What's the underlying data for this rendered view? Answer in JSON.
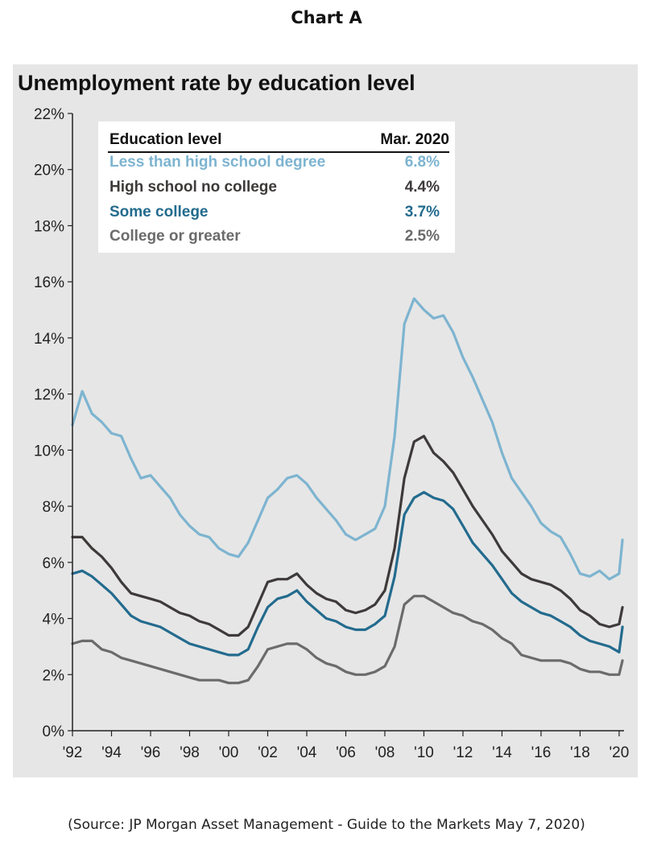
{
  "page_heading": "Chart A",
  "source_note": "(Source: JP Morgan Asset Management - Guide to the Markets May 7, 2020)",
  "chart_data": {
    "type": "line",
    "title": "Unemployment rate by education level",
    "xlabel": "",
    "ylabel": "",
    "ylim": [
      0,
      22
    ],
    "xlim": [
      1992,
      2020.25
    ],
    "y_ticks": [
      "0%",
      "2%",
      "4%",
      "6%",
      "8%",
      "10%",
      "12%",
      "14%",
      "16%",
      "18%",
      "20%",
      "22%"
    ],
    "x_ticks": [
      "'92",
      "'94",
      "'96",
      "'98",
      "'00",
      "'02",
      "'04",
      "'06",
      "'08",
      "'10",
      "'12",
      "'14",
      "'16",
      "'18",
      "'20"
    ],
    "grid": false,
    "legend": {
      "placement": "top-left",
      "header_label": "Education level",
      "header_value": "Mar. 2020"
    },
    "series": [
      {
        "name": "Less than high school degree",
        "latest": "6.8%",
        "color": "#7db4d0",
        "x": [
          1992,
          1992.5,
          1993,
          1993.5,
          1994,
          1994.5,
          1995,
          1995.5,
          1996,
          1996.5,
          1997,
          1997.5,
          1998,
          1998.5,
          1999,
          1999.5,
          2000,
          2000.5,
          2001,
          2001.5,
          2002,
          2002.5,
          2003,
          2003.5,
          2004,
          2004.5,
          2005,
          2005.5,
          2006,
          2006.5,
          2007,
          2007.5,
          2008,
          2008.5,
          2009,
          2009.5,
          2010,
          2010.5,
          2011,
          2011.5,
          2012,
          2012.5,
          2013,
          2013.5,
          2014,
          2014.5,
          2015,
          2015.5,
          2016,
          2016.5,
          2017,
          2017.5,
          2018,
          2018.5,
          2019,
          2019.5,
          2020,
          2020.17
        ],
        "values": [
          10.9,
          12.1,
          11.3,
          11.0,
          10.6,
          10.5,
          9.7,
          9.0,
          9.1,
          8.7,
          8.3,
          7.7,
          7.3,
          7.0,
          6.9,
          6.5,
          6.3,
          6.2,
          6.7,
          7.5,
          8.3,
          8.6,
          9.0,
          9.1,
          8.8,
          8.3,
          7.9,
          7.5,
          7.0,
          6.8,
          7.0,
          7.2,
          8.0,
          10.5,
          14.5,
          15.4,
          15.0,
          14.7,
          14.8,
          14.2,
          13.3,
          12.6,
          11.8,
          11.0,
          9.9,
          9.0,
          8.5,
          8.0,
          7.4,
          7.1,
          6.9,
          6.3,
          5.6,
          5.5,
          5.7,
          5.4,
          5.6,
          6.8
        ]
      },
      {
        "name": "High school no college",
        "latest": "4.4%",
        "color": "#3e3a3a",
        "x": [
          1992,
          1992.5,
          1993,
          1993.5,
          1994,
          1994.5,
          1995,
          1995.5,
          1996,
          1996.5,
          1997,
          1997.5,
          1998,
          1998.5,
          1999,
          1999.5,
          2000,
          2000.5,
          2001,
          2001.5,
          2002,
          2002.5,
          2003,
          2003.5,
          2004,
          2004.5,
          2005,
          2005.5,
          2006,
          2006.5,
          2007,
          2007.5,
          2008,
          2008.5,
          2009,
          2009.5,
          2010,
          2010.5,
          2011,
          2011.5,
          2012,
          2012.5,
          2013,
          2013.5,
          2014,
          2014.5,
          2015,
          2015.5,
          2016,
          2016.5,
          2017,
          2017.5,
          2018,
          2018.5,
          2019,
          2019.5,
          2020,
          2020.17
        ],
        "values": [
          6.9,
          6.9,
          6.5,
          6.2,
          5.8,
          5.3,
          4.9,
          4.8,
          4.7,
          4.6,
          4.4,
          4.2,
          4.1,
          3.9,
          3.8,
          3.6,
          3.4,
          3.4,
          3.7,
          4.5,
          5.3,
          5.4,
          5.4,
          5.6,
          5.2,
          4.9,
          4.7,
          4.6,
          4.3,
          4.2,
          4.3,
          4.5,
          5.0,
          6.5,
          9.0,
          10.3,
          10.5,
          9.9,
          9.6,
          9.2,
          8.6,
          8.0,
          7.5,
          7.0,
          6.4,
          6.0,
          5.6,
          5.4,
          5.3,
          5.2,
          5.0,
          4.7,
          4.3,
          4.1,
          3.8,
          3.7,
          3.8,
          4.4
        ]
      },
      {
        "name": "Some college",
        "latest": "3.7%",
        "color": "#236b8e",
        "x": [
          1992,
          1992.5,
          1993,
          1993.5,
          1994,
          1994.5,
          1995,
          1995.5,
          1996,
          1996.5,
          1997,
          1997.5,
          1998,
          1998.5,
          1999,
          1999.5,
          2000,
          2000.5,
          2001,
          2001.5,
          2002,
          2002.5,
          2003,
          2003.5,
          2004,
          2004.5,
          2005,
          2005.5,
          2006,
          2006.5,
          2007,
          2007.5,
          2008,
          2008.5,
          2009,
          2009.5,
          2010,
          2010.5,
          2011,
          2011.5,
          2012,
          2012.5,
          2013,
          2013.5,
          2014,
          2014.5,
          2015,
          2015.5,
          2016,
          2016.5,
          2017,
          2017.5,
          2018,
          2018.5,
          2019,
          2019.5,
          2020,
          2020.17
        ],
        "values": [
          5.6,
          5.7,
          5.5,
          5.2,
          4.9,
          4.5,
          4.1,
          3.9,
          3.8,
          3.7,
          3.5,
          3.3,
          3.1,
          3.0,
          2.9,
          2.8,
          2.7,
          2.7,
          2.9,
          3.7,
          4.4,
          4.7,
          4.8,
          5.0,
          4.6,
          4.3,
          4.0,
          3.9,
          3.7,
          3.6,
          3.6,
          3.8,
          4.1,
          5.5,
          7.7,
          8.3,
          8.5,
          8.3,
          8.2,
          7.9,
          7.3,
          6.7,
          6.3,
          5.9,
          5.4,
          4.9,
          4.6,
          4.4,
          4.2,
          4.1,
          3.9,
          3.7,
          3.4,
          3.2,
          3.1,
          3.0,
          2.8,
          3.7
        ]
      },
      {
        "name": "College or greater",
        "latest": "2.5%",
        "color": "#6b6b6b",
        "x": [
          1992,
          1992.5,
          1993,
          1993.5,
          1994,
          1994.5,
          1995,
          1995.5,
          1996,
          1996.5,
          1997,
          1997.5,
          1998,
          1998.5,
          1999,
          1999.5,
          2000,
          2000.5,
          2001,
          2001.5,
          2002,
          2002.5,
          2003,
          2003.5,
          2004,
          2004.5,
          2005,
          2005.5,
          2006,
          2006.5,
          2007,
          2007.5,
          2008,
          2008.5,
          2009,
          2009.5,
          2010,
          2010.5,
          2011,
          2011.5,
          2012,
          2012.5,
          2013,
          2013.5,
          2014,
          2014.5,
          2015,
          2015.5,
          2016,
          2016.5,
          2017,
          2017.5,
          2018,
          2018.5,
          2019,
          2019.5,
          2020,
          2020.17
        ],
        "values": [
          3.1,
          3.2,
          3.2,
          2.9,
          2.8,
          2.6,
          2.5,
          2.4,
          2.3,
          2.2,
          2.1,
          2.0,
          1.9,
          1.8,
          1.8,
          1.8,
          1.7,
          1.7,
          1.8,
          2.3,
          2.9,
          3.0,
          3.1,
          3.1,
          2.9,
          2.6,
          2.4,
          2.3,
          2.1,
          2.0,
          2.0,
          2.1,
          2.3,
          3.0,
          4.5,
          4.8,
          4.8,
          4.6,
          4.4,
          4.2,
          4.1,
          3.9,
          3.8,
          3.6,
          3.3,
          3.1,
          2.7,
          2.6,
          2.5,
          2.5,
          2.5,
          2.4,
          2.2,
          2.1,
          2.1,
          2.0,
          2.0,
          2.5
        ]
      }
    ]
  }
}
